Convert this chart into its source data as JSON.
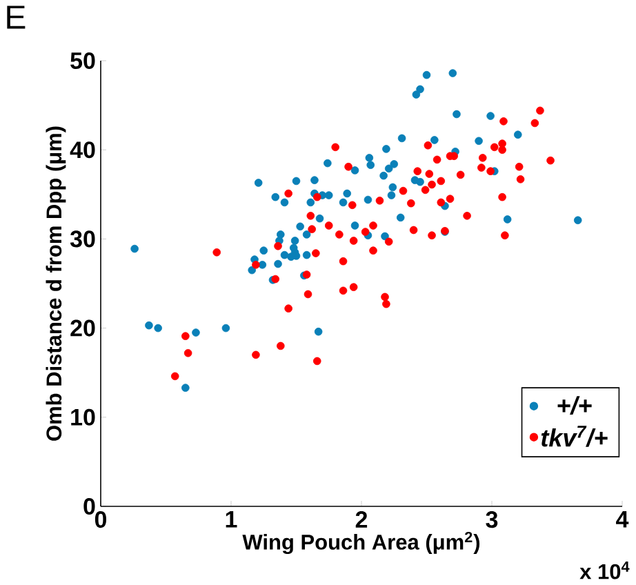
{
  "chart_data": {
    "type": "scatter",
    "title": "E",
    "xlabel": "Wing Pouch Area (μm$^{2}$)",
    "ylabel": "Omb Distance d from Dpp (μm)",
    "annotations": [
      "x 10$^{4}$"
    ],
    "xlim": [
      0,
      4
    ],
    "ylim": [
      0,
      50
    ],
    "xticks": [
      0,
      1,
      2,
      3,
      4
    ],
    "yticks": [
      0,
      10,
      20,
      30,
      40,
      50
    ],
    "legend": "bottom right",
    "grid": false,
    "series": [
      {
        "name": "+/+",
        "color": "#0a80b8",
        "x": [
          0.26,
          1.21,
          1.34,
          1.41,
          1.5,
          1.64,
          1.74,
          1.64,
          1.7,
          1.75,
          1.61,
          1.89,
          1.86,
          1.68,
          1.53,
          1.58,
          1.38,
          1.37,
          1.49,
          1.48,
          1.49,
          1.25,
          1.18,
          1.41,
          1.46,
          1.5,
          1.36,
          1.16,
          1.24,
          1.58,
          1.32,
          1.56,
          1.95,
          1.95,
          0.37,
          0.44,
          0.73,
          0.96,
          0.65,
          1.67,
          2.5,
          2.7,
          2.45,
          2.42,
          2.73,
          2.99,
          3.2,
          2.9,
          2.56,
          2.31,
          2.19,
          2.72,
          2.06,
          2.07,
          2.25,
          2.21,
          2.17,
          2.41,
          2.45,
          2.24,
          2.23,
          2.05,
          2.3,
          2.64,
          3.02,
          3.12,
          3.66,
          2.05,
          2.18,
          2.64
        ],
        "values": [
          28.9,
          36.3,
          34.7,
          34.1,
          36.5,
          36.6,
          38.5,
          35.1,
          34.9,
          34.9,
          34.1,
          35.1,
          34.1,
          32.3,
          31.4,
          30.5,
          30.5,
          29.8,
          29.8,
          29.0,
          28.5,
          28.7,
          27.7,
          28.2,
          28.0,
          28.1,
          27.2,
          26.5,
          27.1,
          28.2,
          25.4,
          25.9,
          31.5,
          37.7,
          20.3,
          20.0,
          19.5,
          20.0,
          13.3,
          19.6,
          48.4,
          48.6,
          46.8,
          46.2,
          44.0,
          43.8,
          41.7,
          41.0,
          41.1,
          41.3,
          40.1,
          39.8,
          39.1,
          38.3,
          38.4,
          37.9,
          37.1,
          36.6,
          36.4,
          35.8,
          34.9,
          34.4,
          32.4,
          33.7,
          37.6,
          32.2,
          32.1,
          30.4,
          30.3,
          30.8
        ]
      },
      {
        "name": "tkv$^{7}$/+",
        "color": "#ff0000",
        "x": [
          0.89,
          1.19,
          1.44,
          1.66,
          1.8,
          1.9,
          1.93,
          1.61,
          1.75,
          1.83,
          1.94,
          1.36,
          1.62,
          1.65,
          1.86,
          1.34,
          1.58,
          0.65,
          0.67,
          0.57,
          1.19,
          1.38,
          1.44,
          1.59,
          1.66,
          1.86,
          1.94,
          2.09,
          2.18,
          2.19,
          2.03,
          2.09,
          2.21,
          2.14,
          2.32,
          2.38,
          2.4,
          2.51,
          2.43,
          2.52,
          2.58,
          2.49,
          2.54,
          2.61,
          2.61,
          2.68,
          2.54,
          2.64,
          2.68,
          2.71,
          2.76,
          2.81,
          2.93,
          2.92,
          2.99,
          3.02,
          3.08,
          3.08,
          3.09,
          3.33,
          3.37,
          3.21,
          3.22,
          3.45,
          3.08,
          3.1
        ],
        "values": [
          28.5,
          27.1,
          35.1,
          34.7,
          40.3,
          38.1,
          33.8,
          32.6,
          31.5,
          30.5,
          29.8,
          29.2,
          31.1,
          28.4,
          27.5,
          25.5,
          26.0,
          19.1,
          17.2,
          14.6,
          17.0,
          18.0,
          22.2,
          23.8,
          16.3,
          24.2,
          24.6,
          28.7,
          23.5,
          22.7,
          30.8,
          31.5,
          29.7,
          34.3,
          35.4,
          34.0,
          31.0,
          40.5,
          37.6,
          37.3,
          38.9,
          35.5,
          36.1,
          36.5,
          34.1,
          34.5,
          30.4,
          30.9,
          39.3,
          39.3,
          37.2,
          32.6,
          39.1,
          38.0,
          37.6,
          40.3,
          40.7,
          40.0,
          43.2,
          43.0,
          44.4,
          38.1,
          36.7,
          38.8,
          34.7,
          30.4
        ]
      }
    ]
  }
}
